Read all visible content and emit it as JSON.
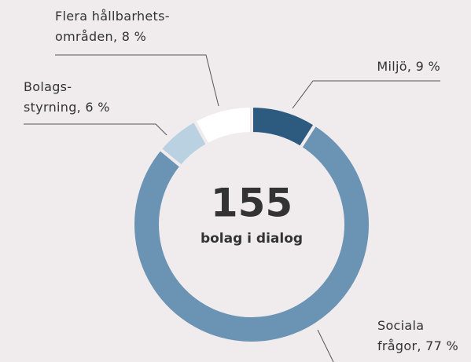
{
  "chart_data": {
    "type": "donut",
    "center_value": "155",
    "center_label": "bolag i dialog",
    "values": [
      9,
      77,
      6,
      8
    ],
    "value_labels": [
      "Miljö, 9 %",
      "Sociala\nfrågor, 77 %",
      "Bolags-\nstyrning, 6 %",
      "Flera hållbarhets-\nområden, 8 %"
    ],
    "colors": [
      "#2d5b80",
      "#6b93b4",
      "#b9d1e1",
      "#ffffff"
    ]
  }
}
